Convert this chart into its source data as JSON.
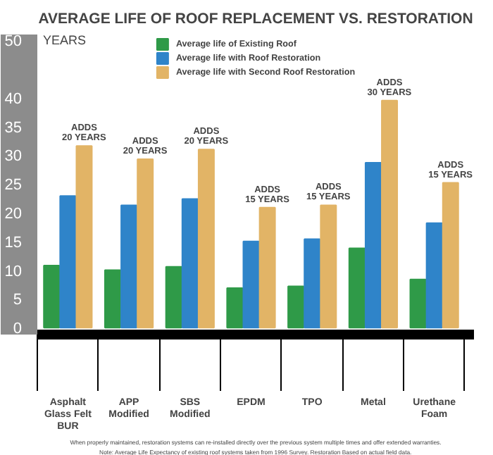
{
  "chart_data": {
    "type": "bar",
    "title": "AVERAGE LIFE OF ROOF REPLACEMENT VS. RESTORATION",
    "ylabel": "YEARS",
    "categories": [
      "Asphalt\nGlass Felt\nBUR",
      "APP\nModified",
      "SBS\nModified",
      "EPDM",
      "TPO",
      "Metal",
      "Urethane\nFoam"
    ],
    "series": [
      {
        "name": "Average life of Existing Roof",
        "color": "#2f9a48",
        "values": [
          10.8,
          10.0,
          10.6,
          6.9,
          7.2,
          13.8,
          8.4
        ]
      },
      {
        "name": "Average life with Roof Restoration",
        "color": "#2f84c9",
        "values": [
          22.9,
          21.3,
          22.4,
          15.0,
          15.4,
          28.7,
          18.2
        ]
      },
      {
        "name": "Average life with Second Roof Restoration",
        "color": "#e2b466",
        "values": [
          31.6,
          29.3,
          31.0,
          20.9,
          21.3,
          39.5,
          25.2
        ]
      }
    ],
    "ylim": [
      -1.2,
      51
    ],
    "yticks": [
      0,
      5,
      10,
      15,
      20,
      25,
      30,
      35,
      40,
      50
    ],
    "grid": false,
    "legend": "top",
    "annotations": [
      "ADDS\n20 YEARS",
      "ADDS\n20 YEARS",
      "ADDS\n20 YEARS",
      "ADDS\n15 YEARS",
      "ADDS\n15 YEARS",
      "ADDS\n30 YEARS",
      "ADDS\n15 YEARS",
      "When properly maintained, restoration systems can re-installed directly over the previous system multiple times and offer extended warranties.",
      "Note: Average Life Expectancy of existing roof systems taken from 1996 Survey. Restoration Based on actual field data."
    ]
  }
}
